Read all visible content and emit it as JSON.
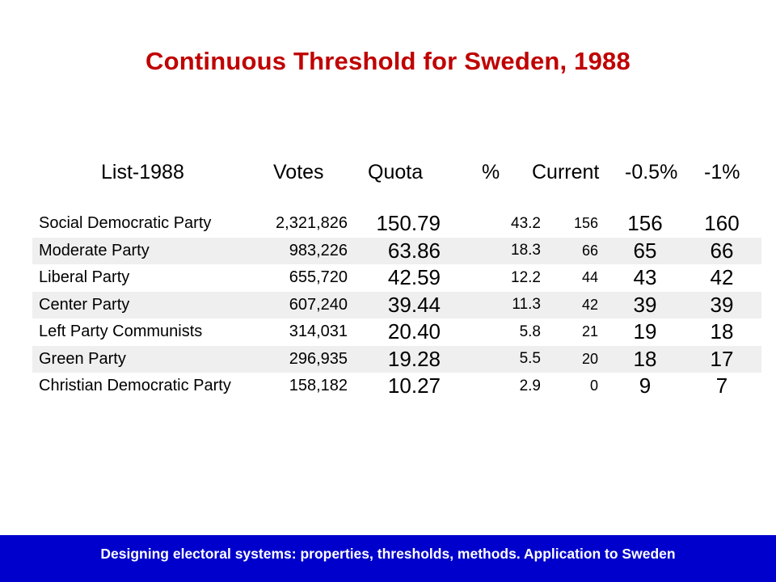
{
  "title": "Continuous Threshold for Sweden, 1988",
  "table": {
    "headers": {
      "list": "List-1988",
      "votes": "Votes",
      "quota": "Quota",
      "pct": "%",
      "current": "Current",
      "half": "-0.5%",
      "one": "-1%"
    },
    "rows": [
      {
        "party": "Social Democratic Party",
        "votes": "2,321,826",
        "quota": "150.79",
        "pct": "43.2",
        "current": "156",
        "half": "156",
        "one": "160"
      },
      {
        "party": "Moderate Party",
        "votes": "983,226",
        "quota": "63.86",
        "pct": "18.3",
        "current": "66",
        "half": "65",
        "one": "66"
      },
      {
        "party": "Liberal Party",
        "votes": "655,720",
        "quota": "42.59",
        "pct": "12.2",
        "current": "44",
        "half": "43",
        "one": "42"
      },
      {
        "party": "Center Party",
        "votes": "607,240",
        "quota": "39.44",
        "pct": "11.3",
        "current": "42",
        "half": "39",
        "one": "39"
      },
      {
        "party": "Left Party Communists",
        "votes": "314,031",
        "quota": "20.40",
        "pct": "5.8",
        "current": "21",
        "half": "19",
        "one": "18"
      },
      {
        "party": "Green Party",
        "votes": "296,935",
        "quota": "19.28",
        "pct": "5.5",
        "current": "20",
        "half": "18",
        "one": "17"
      },
      {
        "party": "Christian Democratic Party",
        "votes": "158,182",
        "quota": "10.27",
        "pct": "2.9",
        "current": "0",
        "half": "9",
        "one": "7"
      }
    ]
  },
  "footer": "Designing electoral systems: properties, thresholds, methods. Application to Sweden",
  "colors": {
    "title": "#c00000",
    "footer_bg": "#0000cc",
    "row_shade": "#efefef"
  }
}
